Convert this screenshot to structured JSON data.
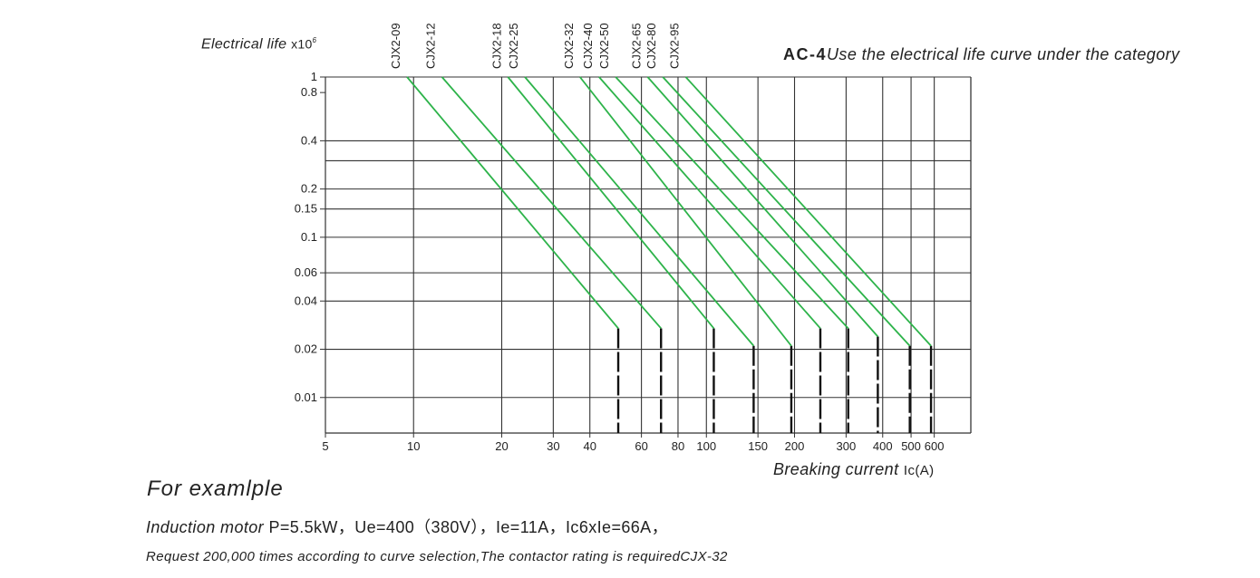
{
  "chart_data": {
    "type": "line",
    "ylabel": "Electrical life",
    "ylabel_unit": "x10",
    "ylabel_exp": "6",
    "xlabel": "Breaking current",
    "xlabel_unit": "Ic(A)",
    "category_code": "AC-4",
    "category_text": "Use the electrical life curve under the category",
    "x_scale": "log",
    "y_scale": "log",
    "xlim": [
      5,
      800
    ],
    "ylim": [
      0.006,
      1
    ],
    "grid": true,
    "y_gridlines": [
      1,
      0.4,
      0.3,
      0.2,
      0.15,
      0.1,
      0.06,
      0.04,
      0.02,
      0.01
    ],
    "y_ticks": [
      {
        "value": 1,
        "label": "1"
      },
      {
        "value": 0.8,
        "label": "0.8"
      },
      {
        "value": 0.4,
        "label": "0.4"
      },
      {
        "value": 0.2,
        "label": "0.2"
      },
      {
        "value": 0.15,
        "label": "0.15"
      },
      {
        "value": 0.1,
        "label": "0.1"
      },
      {
        "value": 0.06,
        "label": "0.06"
      },
      {
        "value": 0.04,
        "label": "0.04"
      },
      {
        "value": 0.02,
        "label": "0.02"
      },
      {
        "value": 0.01,
        "label": "0.01"
      }
    ],
    "x_gridlines": [
      10,
      20,
      30,
      40,
      60,
      80,
      100,
      150,
      200,
      300,
      400,
      500,
      600,
      800
    ],
    "x_ticks": [
      {
        "value": 5,
        "label": "5"
      },
      {
        "value": 10,
        "label": "10"
      },
      {
        "value": 20,
        "label": "20"
      },
      {
        "value": 30,
        "label": "30"
      },
      {
        "value": 40,
        "label": "40"
      },
      {
        "value": 60,
        "label": "60"
      },
      {
        "value": 80,
        "label": "80"
      },
      {
        "value": 100,
        "label": "100"
      },
      {
        "value": 150,
        "label": "150"
      },
      {
        "value": 200,
        "label": "200"
      },
      {
        "value": 300,
        "label": "300"
      },
      {
        "value": 400,
        "label": "400"
      },
      {
        "value": 500,
        "label": "500"
      },
      {
        "value": 600,
        "label": "600"
      }
    ],
    "series_color": "#2db34a",
    "cutoff_color": "#111111",
    "series": [
      {
        "name": "CJX2-09",
        "x0": 9.5,
        "y0": 1,
        "x1": 50,
        "y1": 0.027
      },
      {
        "name": "CJX2-12",
        "x0": 12.5,
        "y0": 1,
        "x1": 70,
        "y1": 0.027
      },
      {
        "name": "CJX2-18",
        "x0": 21,
        "y0": 1,
        "x1": 106,
        "y1": 0.027
      },
      {
        "name": "CJX2-25",
        "x0": 24,
        "y0": 1,
        "x1": 145,
        "y1": 0.021
      },
      {
        "name": "CJX2-32",
        "x0": 37,
        "y0": 1,
        "x1": 195,
        "y1": 0.021
      },
      {
        "name": "CJX2-40",
        "x0": 43,
        "y0": 1,
        "x1": 245,
        "y1": 0.027
      },
      {
        "name": "CJX2-50",
        "x0": 49,
        "y0": 1,
        "x1": 305,
        "y1": 0.027
      },
      {
        "name": "CJX2-65",
        "x0": 63,
        "y0": 1,
        "x1": 385,
        "y1": 0.024
      },
      {
        "name": "CJX2-80",
        "x0": 71,
        "y0": 1,
        "x1": 495,
        "y1": 0.021
      },
      {
        "name": "CJX2-95",
        "x0": 85,
        "y0": 1,
        "x1": 585,
        "y1": 0.021
      }
    ]
  },
  "example": {
    "title": "For examlple",
    "line1_label": "Induction motor",
    "line1_values": " P=5.5kW，Ue=400（380V），Ie=11A，Ic6xIe=66A，",
    "line2": "Request 200,000 times according to curve selection,The contactor rating is requiredCJX-32"
  }
}
